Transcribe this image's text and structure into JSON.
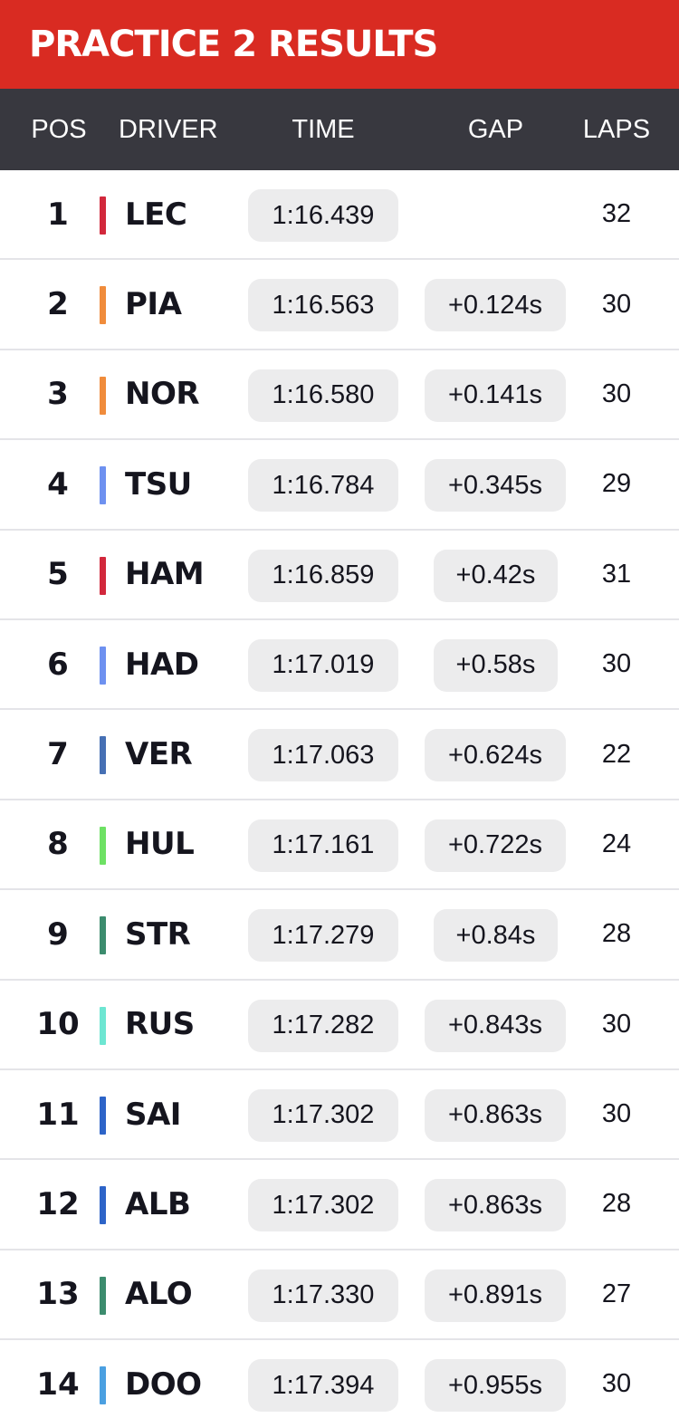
{
  "title": "PRACTICE 2 RESULTS",
  "columns": {
    "pos": "POS",
    "driver": "DRIVER",
    "time": "TIME",
    "gap": "GAP",
    "laps": "LAPS"
  },
  "colors": {
    "title_bg": "#d92b22",
    "header_bg": "#38383f"
  },
  "results": [
    {
      "pos": "1",
      "driver": "LEC",
      "time": "1:16.439",
      "gap": "",
      "laps": "32",
      "team_color": "#d2283c"
    },
    {
      "pos": "2",
      "driver": "PIA",
      "time": "1:16.563",
      "gap": "+0.124s",
      "laps": "30",
      "team_color": "#f08c3c"
    },
    {
      "pos": "3",
      "driver": "NOR",
      "time": "1:16.580",
      "gap": "+0.141s",
      "laps": "30",
      "team_color": "#f08c3c"
    },
    {
      "pos": "4",
      "driver": "TSU",
      "time": "1:16.784",
      "gap": "+0.345s",
      "laps": "29",
      "team_color": "#6e91f0"
    },
    {
      "pos": "5",
      "driver": "HAM",
      "time": "1:16.859",
      "gap": "+0.42s",
      "laps": "31",
      "team_color": "#d2283c"
    },
    {
      "pos": "6",
      "driver": "HAD",
      "time": "1:17.019",
      "gap": "+0.58s",
      "laps": "30",
      "team_color": "#6e91f0"
    },
    {
      "pos": "7",
      "driver": "VER",
      "time": "1:17.063",
      "gap": "+0.624s",
      "laps": "22",
      "team_color": "#4670b4"
    },
    {
      "pos": "8",
      "driver": "HUL",
      "time": "1:17.161",
      "gap": "+0.722s",
      "laps": "24",
      "team_color": "#6ee164"
    },
    {
      "pos": "9",
      "driver": "STR",
      "time": "1:17.279",
      "gap": "+0.84s",
      "laps": "28",
      "team_color": "#3c8c6e"
    },
    {
      "pos": "10",
      "driver": "RUS",
      "time": "1:17.282",
      "gap": "+0.843s",
      "laps": "30",
      "team_color": "#6ee6d2"
    },
    {
      "pos": "11",
      "driver": "SAI",
      "time": "1:17.302",
      "gap": "+0.863s",
      "laps": "30",
      "team_color": "#2d64c8"
    },
    {
      "pos": "12",
      "driver": "ALB",
      "time": "1:17.302",
      "gap": "+0.863s",
      "laps": "28",
      "team_color": "#2d64c8"
    },
    {
      "pos": "13",
      "driver": "ALO",
      "time": "1:17.330",
      "gap": "+0.891s",
      "laps": "27",
      "team_color": "#3c8c6e"
    },
    {
      "pos": "14",
      "driver": "DOO",
      "time": "1:17.394",
      "gap": "+0.955s",
      "laps": "30",
      "team_color": "#4ba0e1"
    }
  ]
}
